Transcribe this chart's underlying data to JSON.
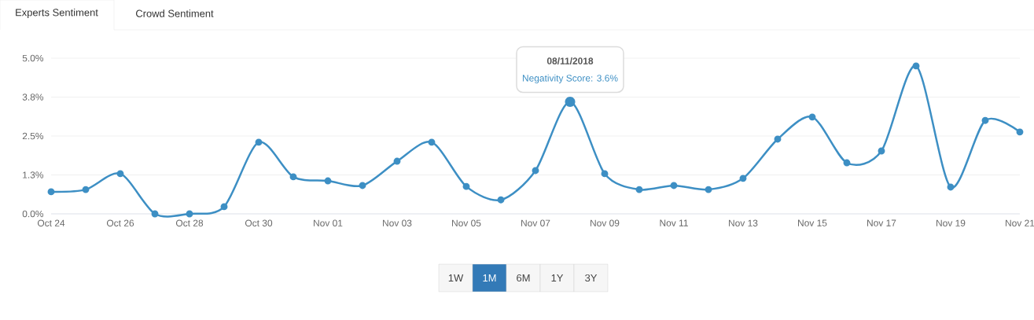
{
  "chart_data": {
    "type": "line",
    "x": [
      "2018-10-24",
      "2018-10-25",
      "2018-10-26",
      "2018-10-27",
      "2018-10-28",
      "2018-10-29",
      "2018-10-30",
      "2018-10-31",
      "2018-11-01",
      "2018-11-02",
      "2018-11-03",
      "2018-11-04",
      "2018-11-05",
      "2018-11-06",
      "2018-11-07",
      "2018-11-08",
      "2018-11-09",
      "2018-11-10",
      "2018-11-11",
      "2018-11-12",
      "2018-11-13",
      "2018-11-14",
      "2018-11-15",
      "2018-11-16",
      "2018-11-17",
      "2018-11-18",
      "2018-11-19",
      "2018-11-20",
      "2018-11-21"
    ],
    "series": [
      {
        "color": "#3d8fc4",
        "values": [
          0.71,
          0.78,
          1.29,
          0,
          0,
          0.23,
          2.3,
          1.19,
          1.06,
          0.91,
          1.69,
          2.3,
          0.88,
          0.45,
          1.39,
          3.6,
          1.29,
          0.78,
          0.91,
          0.78,
          1.14,
          2.4,
          3.11,
          1.64,
          2.02,
          4.75,
          0.86,
          3.0,
          2.63
        ]
      }
    ],
    "xlim": [
      "2018-10-24",
      "2018-11-21"
    ],
    "xticks": [
      {
        "value": "2018-10-24",
        "label": "Oct 24"
      },
      {
        "value": "2018-10-26",
        "label": "Oct 26"
      },
      {
        "value": "2018-10-28",
        "label": "Oct 28"
      },
      {
        "value": "2018-10-30",
        "label": "Oct 30"
      },
      {
        "value": "2018-11-01",
        "label": "Nov 01"
      },
      {
        "value": "2018-11-03",
        "label": "Nov 03"
      },
      {
        "value": "2018-11-05",
        "label": "Nov 05"
      },
      {
        "value": "2018-11-07",
        "label": "Nov 07"
      },
      {
        "value": "2018-11-09",
        "label": "Nov 09"
      },
      {
        "value": "2018-11-11",
        "label": "Nov 11"
      },
      {
        "value": "2018-11-13",
        "label": "Nov 13"
      },
      {
        "value": "2018-11-15",
        "label": "Nov 15"
      },
      {
        "value": "2018-11-17",
        "label": "Nov 17"
      },
      {
        "value": "2018-11-19",
        "label": "Nov 19"
      },
      {
        "value": "2018-11-21",
        "label": "Nov 21"
      }
    ],
    "ylim": [
      0,
      5.0
    ],
    "yticks": [
      {
        "value": 0,
        "label": "0.0%"
      },
      {
        "value": 1.25,
        "label": "1.3%"
      },
      {
        "value": 2.5,
        "label": "2.5%"
      },
      {
        "value": 3.75,
        "label": "3.8%"
      },
      {
        "value": 5.0,
        "label": "5.0%"
      }
    ],
    "grid": "y",
    "marker": "circle",
    "annotations": [
      "Experts Sentiment",
      "Crowd Sentiment",
      "1W",
      "1M",
      "6M",
      "1Y",
      "3Y",
      "08/11/2018",
      {
        "text": "Negativity Score: 3.6%",
        "x": "2018-11-08",
        "y": 3.6
      }
    ]
  }
}
